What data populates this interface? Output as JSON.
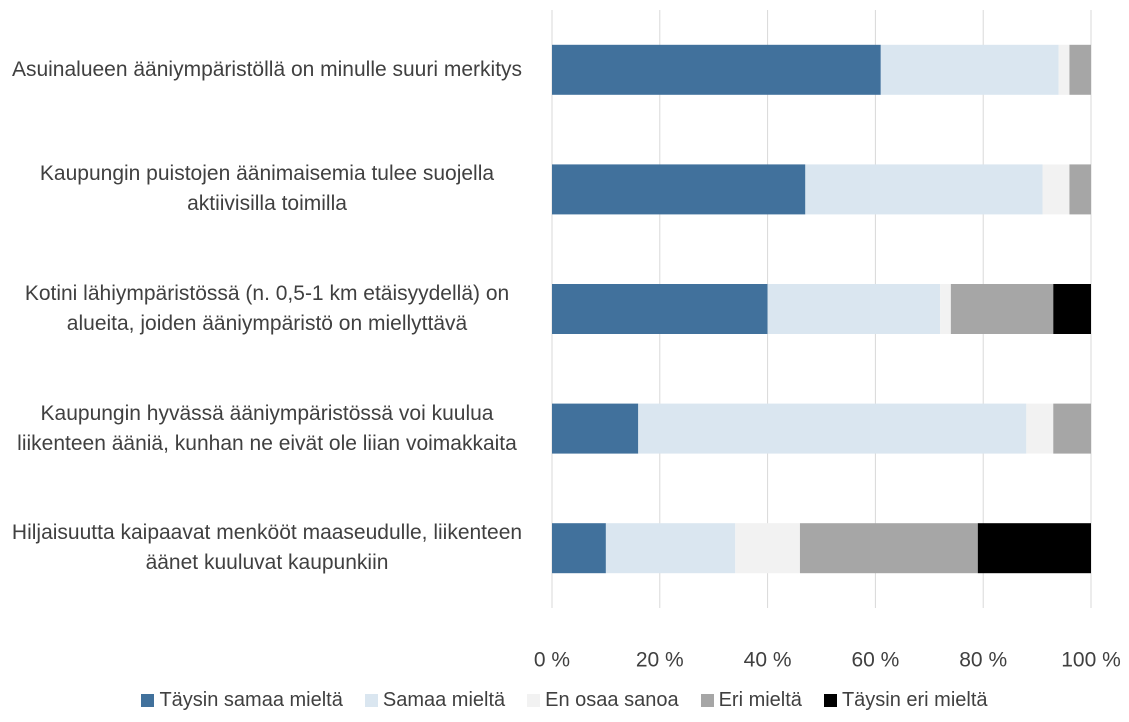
{
  "chart_data": {
    "type": "stacked_barh",
    "categories": [
      "Asuinalueen ääniympäristöllä on minulle suuri merkitys",
      "Kaupungin puistojen äänimaisemia tulee suojella aktiivisilla toimilla",
      "Kotini lähiympäristössä (n. 0,5-1 km etäisyydellä) on alueita, joiden ääniympäristö on miellyttävä",
      "Kaupungin hyvässä ääniympäristössä voi kuulua liikenteen ääniä, kunhan ne eivät ole liian voimakkaita",
      "Hiljaisuutta kaipaavat menkööt maaseudulle, liikenteen äänet kuuluvat kaupunkiin"
    ],
    "series": [
      {
        "name": "Täysin samaa mieltä",
        "color": "#41719c",
        "values": [
          61,
          47,
          40,
          16,
          10
        ]
      },
      {
        "name": "Samaa mieltä",
        "color": "#dae6f0",
        "values": [
          33,
          44,
          32,
          72,
          24
        ]
      },
      {
        "name": "En osaa sanoa",
        "color": "#f2f2f2",
        "values": [
          2,
          5,
          2,
          5,
          12
        ]
      },
      {
        "name": "Eri mieltä",
        "color": "#a6a6a6",
        "values": [
          4,
          4,
          19,
          7,
          33
        ]
      },
      {
        "name": "Täysin eri mieltä",
        "color": "#000000",
        "values": [
          0,
          0,
          7,
          0,
          21
        ]
      }
    ],
    "xlim": [
      0,
      100
    ],
    "xticks": [
      {
        "value": 0,
        "label": "0 %"
      },
      {
        "value": 20,
        "label": "20 %"
      },
      {
        "value": 40,
        "label": "40 %"
      },
      {
        "value": 60,
        "label": "60 %"
      },
      {
        "value": 80,
        "label": "80 %"
      },
      {
        "value": 100,
        "label": "100 %"
      }
    ],
    "grid": true,
    "legend": "bottom"
  }
}
